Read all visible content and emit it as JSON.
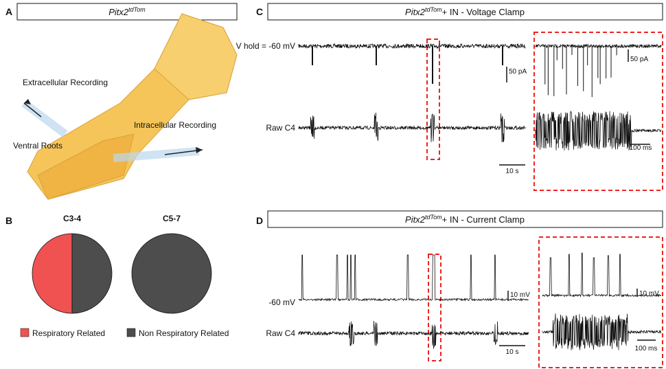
{
  "panels": {
    "A": {
      "letter": "A",
      "title": "Pitx2",
      "title_sup": "tdTom",
      "labels": [
        "Extracellular Recording",
        "Intracellular Recording",
        "Ventral Roots"
      ]
    },
    "B": {
      "letter": "B"
    },
    "C": {
      "letter": "C",
      "title": "Pitx2",
      "title_sup": "tdTom",
      "title_rest": "+ IN - Voltage Clamp",
      "trace1": "V hold = -60 mV",
      "trace2": "Raw C4",
      "scale_y": "50 pA",
      "scale_x": "10 s",
      "zoom_scale_y": "50 pA",
      "zoom_scale_x": "100 ms"
    },
    "D": {
      "letter": "D",
      "title": "Pitx2",
      "title_sup": "tdTom",
      "title_rest": "+ IN - Current Clamp",
      "trace1": "-60 mV",
      "trace2": "Raw C4",
      "scale_y": "10 mV",
      "scale_x": "10 s",
      "zoom_scale_y": "10 mV",
      "zoom_scale_x": "100 ms"
    }
  },
  "chart_data": {
    "type": "pie",
    "categories": [
      "Respiratory Related",
      "Non Respiratory Related"
    ],
    "colors": [
      "#f05252",
      "#4d4d4d"
    ],
    "series": [
      {
        "name": "C3-4",
        "values": [
          50,
          50
        ]
      },
      {
        "name": "C5-7",
        "values": [
          0,
          100
        ]
      }
    ]
  }
}
